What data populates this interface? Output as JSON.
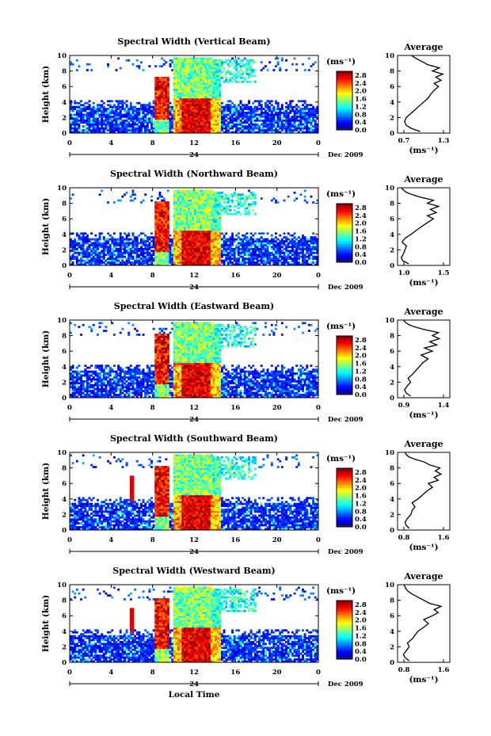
{
  "chart_data": [
    {
      "type": "heatmap",
      "title": "Spectral Width (Vertical Beam)",
      "ylabel": "Height (km)",
      "ylim": [
        0,
        10
      ],
      "yticks": [
        "0",
        "2",
        "4",
        "6",
        "8",
        "10"
      ],
      "xlim": [
        0,
        24
      ],
      "xticks": [
        "0",
        "4",
        "8",
        "12",
        "16",
        "20",
        "0"
      ],
      "date_label": "24",
      "date_suffix": "Dec 2009",
      "colorbar": {
        "unit": "(ms⁻¹)",
        "ticks": [
          "0.0",
          "0.4",
          "0.8",
          "1.2",
          "1.6",
          "2.0",
          "2.4",
          "2.8"
        ],
        "range": [
          0,
          3.0
        ]
      },
      "profile": {
        "title": "Average",
        "xunit": "(ms⁻¹)",
        "xticks": [
          "0.7",
          "1.3"
        ],
        "xlim": [
          0.7,
          1.3
        ],
        "ylim": [
          0,
          10
        ],
        "x": [
          0.96,
          0.86,
          0.8,
          0.78,
          0.8,
          0.85,
          0.9,
          0.95,
          1.0,
          1.05,
          1.08,
          1.12,
          1.17,
          1.12,
          1.2,
          1.14,
          1.22,
          1.1,
          1.18,
          1.05,
          1.0,
          0.95,
          0.9,
          0.86
        ],
        "y": [
          0.2,
          0.6,
          1.0,
          1.5,
          2.0,
          2.5,
          3.0,
          3.5,
          4.0,
          4.5,
          5.0,
          5.5,
          6.0,
          6.4,
          6.8,
          7.2,
          7.6,
          8.0,
          8.4,
          8.8,
          9.1,
          9.4,
          9.7,
          10.0
        ]
      }
    },
    {
      "type": "heatmap",
      "title": "Spectral Width (Northward Beam)",
      "ylabel": "Height (km)",
      "ylim": [
        0,
        10
      ],
      "yticks": [
        "0",
        "2",
        "4",
        "6",
        "8",
        "10"
      ],
      "xlim": [
        0,
        24
      ],
      "xticks": [
        "0",
        "4",
        "8",
        "12",
        "16",
        "20",
        "0"
      ],
      "date_label": "24",
      "date_suffix": "Dec 2009",
      "colorbar": {
        "unit": "(ms⁻¹)",
        "ticks": [
          "0.0",
          "0.4",
          "0.8",
          "1.2",
          "1.6",
          "2.0",
          "2.4",
          "2.8"
        ],
        "range": [
          0,
          3.0
        ]
      },
      "profile": {
        "title": "Average",
        "xunit": "(ms⁻¹)",
        "xticks": [
          "1.0",
          "1.5"
        ],
        "xlim": [
          0.9,
          1.6
        ],
        "ylim": [
          0,
          10
        ],
        "x": [
          1.05,
          0.97,
          0.95,
          0.98,
          1.0,
          1.02,
          0.96,
          1.0,
          1.08,
          1.15,
          1.22,
          1.3,
          1.38,
          1.3,
          1.42,
          1.34,
          1.45,
          1.3,
          1.38,
          1.2,
          1.1,
          1.02,
          0.98,
          0.95
        ],
        "y": [
          0.2,
          0.6,
          1.0,
          1.5,
          2.0,
          2.5,
          3.0,
          3.5,
          4.0,
          4.5,
          5.0,
          5.5,
          6.0,
          6.4,
          6.8,
          7.2,
          7.6,
          8.0,
          8.4,
          8.8,
          9.1,
          9.4,
          9.7,
          10.0
        ]
      }
    },
    {
      "type": "heatmap",
      "title": "Spectral Width (Eastward Beam)",
      "ylabel": "Height (km)",
      "ylim": [
        0,
        10
      ],
      "yticks": [
        "0",
        "2",
        "4",
        "6",
        "8",
        "10"
      ],
      "xlim": [
        0,
        24
      ],
      "xticks": [
        "0",
        "4",
        "8",
        "12",
        "16",
        "20",
        "0"
      ],
      "date_label": "24",
      "date_suffix": "Dec 2009",
      "colorbar": {
        "unit": "(ms⁻¹)",
        "ticks": [
          "0.0",
          "0.4",
          "0.8",
          "1.2",
          "1.6",
          "2.0",
          "2.4",
          "2.8"
        ],
        "range": [
          0,
          3.0
        ]
      },
      "profile": {
        "title": "Average",
        "xunit": "(ms⁻¹)",
        "xticks": [
          "0.9",
          "1.4"
        ],
        "xlim": [
          0.85,
          1.45
        ],
        "ylim": [
          0,
          10
        ],
        "x": [
          1.0,
          0.95,
          0.93,
          0.96,
          1.0,
          0.97,
          1.02,
          1.06,
          1.1,
          1.14,
          1.2,
          1.12,
          1.25,
          1.16,
          1.3,
          1.22,
          1.33,
          1.25,
          1.32,
          1.15,
          1.05,
          0.98,
          0.94,
          0.92
        ],
        "y": [
          0.2,
          0.6,
          1.0,
          1.5,
          2.0,
          2.5,
          3.0,
          3.5,
          4.0,
          4.5,
          5.0,
          5.5,
          6.0,
          6.4,
          6.8,
          7.2,
          7.6,
          8.0,
          8.4,
          8.8,
          9.1,
          9.4,
          9.7,
          10.0
        ]
      }
    },
    {
      "type": "heatmap",
      "title": "Spectral Width (Southward Beam)",
      "ylabel": "Height (km)",
      "ylim": [
        0,
        10
      ],
      "yticks": [
        "0",
        "2",
        "4",
        "6",
        "8",
        "10"
      ],
      "xlim": [
        0,
        24
      ],
      "xticks": [
        "0",
        "4",
        "8",
        "12",
        "16",
        "20",
        "0"
      ],
      "date_label": "24",
      "date_suffix": "Dec 2009",
      "colorbar": {
        "unit": "(ms⁻¹)",
        "ticks": [
          "0.0",
          "0.4",
          "0.8",
          "1.2",
          "1.6",
          "2.0",
          "2.4",
          "2.8"
        ],
        "range": [
          0,
          3.0
        ]
      },
      "profile": {
        "title": "Average",
        "xunit": "(ms⁻¹)",
        "xticks": [
          "0.8",
          "1.6"
        ],
        "xlim": [
          0.75,
          1.65
        ],
        "ylim": [
          0,
          10
        ],
        "x": [
          0.95,
          0.9,
          0.88,
          0.92,
          0.98,
          1.0,
          1.05,
          1.0,
          1.1,
          1.18,
          1.25,
          1.35,
          1.28,
          1.45,
          1.38,
          1.5,
          1.4,
          1.48,
          1.3,
          1.2,
          1.05,
          0.95,
          0.9,
          0.88
        ],
        "y": [
          0.2,
          0.6,
          1.0,
          1.5,
          2.0,
          2.5,
          3.0,
          3.5,
          4.0,
          4.5,
          5.0,
          5.5,
          6.0,
          6.4,
          6.8,
          7.2,
          7.6,
          8.0,
          8.4,
          8.8,
          9.1,
          9.4,
          9.7,
          10.0
        ]
      }
    },
    {
      "type": "heatmap",
      "title": "Spectral Width (Westward Beam)",
      "ylabel": "Height (km)",
      "ylim": [
        0,
        10
      ],
      "yticks": [
        "0",
        "2",
        "4",
        "6",
        "8",
        "10"
      ],
      "xlim": [
        0,
        24
      ],
      "xticks": [
        "0",
        "4",
        "8",
        "12",
        "16",
        "20",
        "0"
      ],
      "date_label": "24",
      "date_suffix": "Dec 2009",
      "xlabel": "Local Time",
      "colorbar": {
        "unit": "(ms⁻¹)",
        "ticks": [
          "0.0",
          "0.4",
          "0.8",
          "1.2",
          "1.6",
          "2.0",
          "2.4",
          "2.8"
        ],
        "range": [
          0,
          3.0
        ]
      },
      "profile": {
        "title": "Average",
        "xunit": "(ms⁻¹)",
        "xticks": [
          "0.8",
          "1.6"
        ],
        "xlim": [
          0.75,
          1.65
        ],
        "ylim": [
          0,
          10
        ],
        "x": [
          0.95,
          0.88,
          0.85,
          0.9,
          0.95,
          0.92,
          1.0,
          1.05,
          1.1,
          1.2,
          1.28,
          1.2,
          1.35,
          1.45,
          1.38,
          1.5,
          1.3,
          1.2,
          1.1,
          1.0,
          0.94,
          0.9,
          0.88,
          0.86
        ],
        "y": [
          0.2,
          0.6,
          1.0,
          1.5,
          2.0,
          2.5,
          3.0,
          3.5,
          4.0,
          4.5,
          5.0,
          5.5,
          6.0,
          6.4,
          6.8,
          7.2,
          7.6,
          8.0,
          8.4,
          8.8,
          9.1,
          9.4,
          9.7,
          10.0
        ]
      }
    }
  ]
}
